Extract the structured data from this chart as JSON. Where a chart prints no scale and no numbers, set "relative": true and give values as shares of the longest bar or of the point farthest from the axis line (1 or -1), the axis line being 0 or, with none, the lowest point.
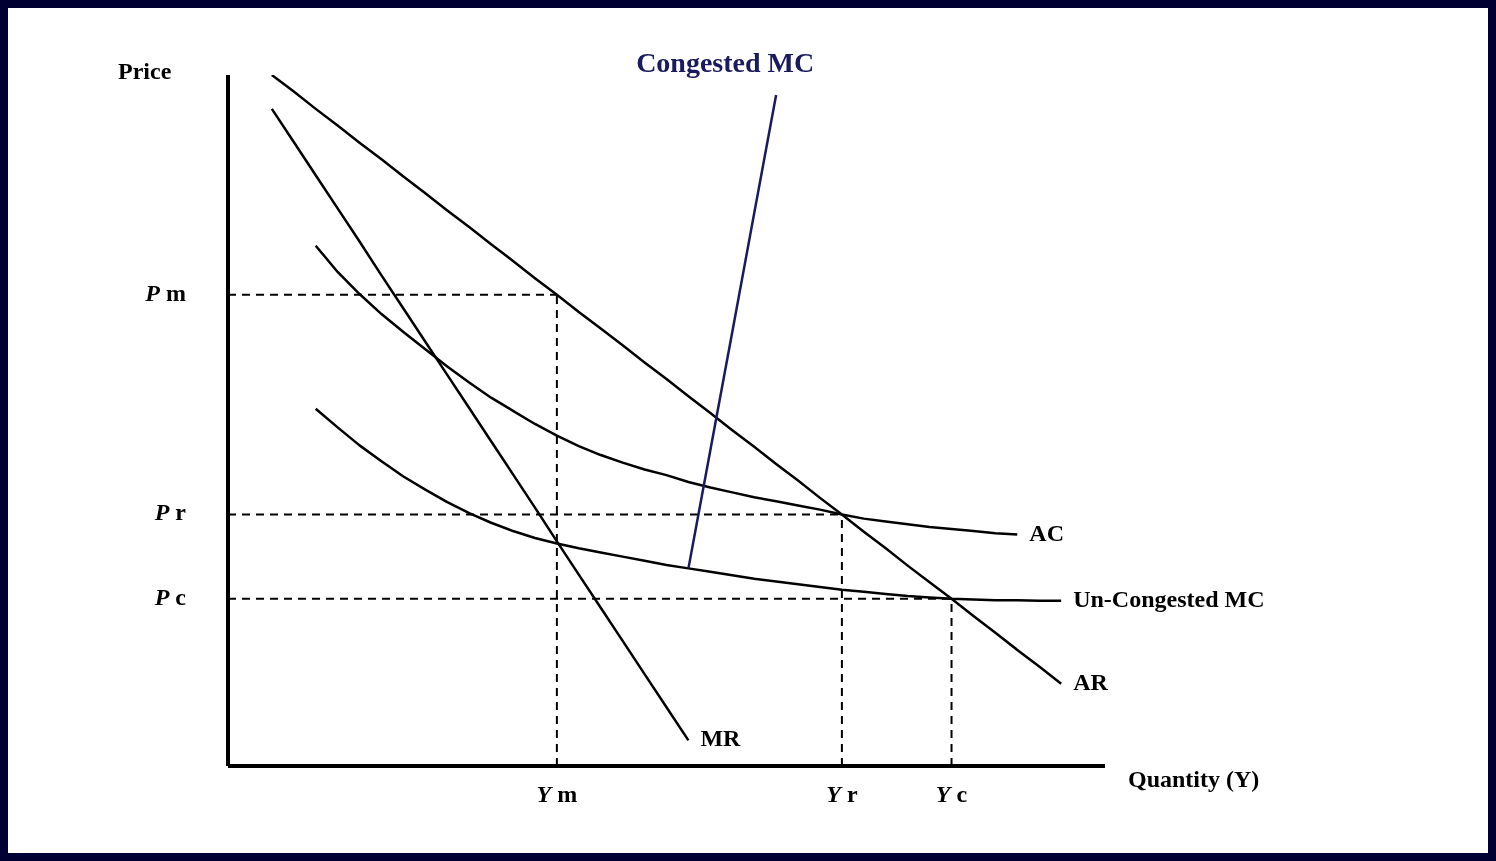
{
  "chart_data": {
    "type": "line",
    "relative": true,
    "xlabel": "Quantity (Y)",
    "ylabel": "Price",
    "grid": false,
    "marker": "none",
    "categories": [
      null,
      null,
      null,
      null,
      null,
      null,
      null,
      null,
      null,
      null,
      null,
      null,
      null,
      null,
      null,
      "Y m",
      null,
      null,
      null,
      null,
      null,
      null,
      null,
      null,
      null,
      null,
      null,
      null,
      "Y r",
      null,
      null,
      null,
      null,
      "Y c",
      null,
      null,
      null,
      null,
      null,
      null,
      null
    ],
    "series": [
      {
        "name": "AR",
        "color": "#000000",
        "values": [
          null,
          null,
          1.0,
          0.976,
          0.951,
          0.927,
          0.902,
          0.878,
          0.853,
          0.829,
          0.804,
          0.78,
          0.755,
          0.731,
          0.706,
          0.682,
          0.657,
          0.633,
          0.609,
          0.584,
          0.56,
          0.535,
          0.511,
          0.486,
          0.462,
          0.437,
          0.413,
          0.388,
          0.364,
          0.339,
          0.315,
          0.29,
          0.266,
          0.242,
          0.217,
          0.193,
          0.168,
          0.144,
          0.119,
          null,
          null
        ]
      },
      {
        "name": "MR",
        "color": "#000000",
        "values": [
          null,
          null,
          0.951,
          0.903,
          0.855,
          0.807,
          0.759,
          0.71,
          0.662,
          0.614,
          0.566,
          0.518,
          0.47,
          0.422,
          0.374,
          0.325,
          0.277,
          0.229,
          0.181,
          0.133,
          0.085,
          0.037,
          null,
          null,
          null,
          null,
          null,
          null,
          null,
          null,
          null,
          null,
          null,
          null,
          null,
          null,
          null,
          null,
          null,
          null,
          null
        ]
      },
      {
        "name": "AC",
        "color": "#000000",
        "values": [
          null,
          null,
          null,
          null,
          0.753,
          0.715,
          0.683,
          0.654,
          0.628,
          0.603,
          0.578,
          0.555,
          0.533,
          0.514,
          0.495,
          0.478,
          0.463,
          0.45,
          0.439,
          0.429,
          0.421,
          0.411,
          0.403,
          0.396,
          0.389,
          0.383,
          0.377,
          0.371,
          0.364,
          0.358,
          0.354,
          0.35,
          0.346,
          0.343,
          0.34,
          0.337,
          0.335,
          null,
          null,
          null,
          null
        ]
      },
      {
        "name": "Un-Congested MC",
        "color": "#000000",
        "values": [
          null,
          null,
          null,
          null,
          0.517,
          0.49,
          0.464,
          0.441,
          0.419,
          0.4,
          0.382,
          0.366,
          0.352,
          0.34,
          0.33,
          0.322,
          0.315,
          0.309,
          0.303,
          0.297,
          0.291,
          0.286,
          0.281,
          0.276,
          0.271,
          0.267,
          0.263,
          0.259,
          0.255,
          0.252,
          0.249,
          0.246,
          0.244,
          0.242,
          0.241,
          0.24,
          0.24,
          0.239,
          0.239,
          null,
          null
        ]
      },
      {
        "name": "Congested MC",
        "color": "#1a1a5e",
        "values": [
          null,
          null,
          null,
          null,
          null,
          null,
          null,
          null,
          null,
          null,
          null,
          null,
          null,
          null,
          null,
          null,
          null,
          null,
          null,
          null,
          null,
          0.286,
          0.457,
          0.628,
          0.8,
          0.971,
          null,
          null,
          null,
          null,
          null,
          null,
          null,
          null,
          null,
          null,
          null,
          null,
          null,
          null,
          null
        ]
      }
    ],
    "ref_lines": [
      {
        "axis": "y",
        "value": 0.682,
        "label": "P m",
        "line_style": "dashed",
        "color": "#000000"
      },
      {
        "axis": "y",
        "value": 0.364,
        "label": "P r",
        "line_style": "dashed",
        "color": "#000000"
      },
      {
        "axis": "y",
        "value": 0.242,
        "label": "P c",
        "line_style": "dashed",
        "color": "#000000"
      },
      {
        "axis": "x",
        "value": "Y m",
        "line_style": "dashed",
        "color": "#000000"
      },
      {
        "axis": "x",
        "value": "Y r",
        "line_style": "dashed",
        "color": "#000000"
      },
      {
        "axis": "x",
        "value": "Y c",
        "line_style": "dashed",
        "color": "#000000"
      }
    ]
  }
}
